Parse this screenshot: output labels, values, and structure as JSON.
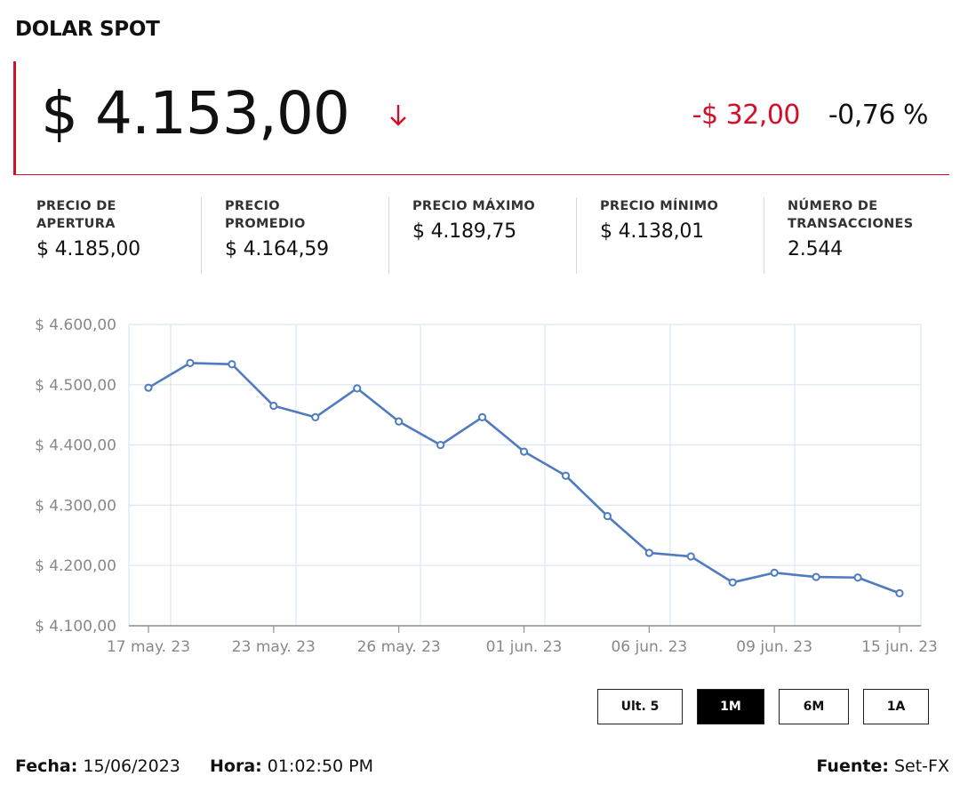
{
  "header": {
    "title": "DOLAR SPOT",
    "price": "$ 4.153,00",
    "change": "-$ 32,00",
    "change_pct": "-0,76 %",
    "trend": "down",
    "colors": {
      "down": "#d3102a",
      "line": "#4f7bbf",
      "grid": "#dde6f2"
    }
  },
  "stats": [
    {
      "label": "PRECIO DE APERTURA",
      "value": "$ 4.185,00"
    },
    {
      "label": "PRECIO PROMEDIO",
      "value": "$ 4.164,59"
    },
    {
      "label": "PRECIO MÁXIMO",
      "value": "$ 4.189,75"
    },
    {
      "label": "PRECIO MÍNIMO",
      "value": "$ 4.138,01"
    },
    {
      "label": "NÚMERO DE TRANSACCIONES",
      "value": "2.544"
    }
  ],
  "chart_data": {
    "type": "line",
    "title": "",
    "xlabel": "",
    "ylabel": "",
    "ylim": [
      4100,
      4600
    ],
    "grid": true,
    "yticks": [
      4100,
      4200,
      4300,
      4400,
      4500,
      4600
    ],
    "ytick_labels": [
      "$ 4.100,00",
      "$ 4.200,00",
      "$ 4.300,00",
      "$ 4.400,00",
      "$ 4.500,00",
      "$ 4.600,00"
    ],
    "xtick_labels": [
      "17 may. 23",
      "23 may. 23",
      "26 may. 23",
      "01 jun. 23",
      "06 jun. 23",
      "09 jun. 23",
      "15 jun. 23"
    ],
    "xtick_index": [
      0,
      3,
      6,
      9,
      12,
      15,
      18
    ],
    "series": [
      {
        "values": [
          4495,
          4536,
          4534,
          4465,
          4446,
          4494,
          4439,
          4400,
          4446,
          4389,
          4349,
          4282,
          4221,
          4215,
          4172,
          4188,
          4181,
          4180,
          4154
        ]
      }
    ]
  },
  "ranges": {
    "buttons": [
      "Ult. 5",
      "1M",
      "6M",
      "1A"
    ],
    "active": "1M"
  },
  "footer": {
    "fecha_label": "Fecha:",
    "fecha": "15/06/2023",
    "hora_label": "Hora:",
    "hora": "01:02:50 PM",
    "fuente_label": "Fuente:",
    "fuente": "Set-FX"
  }
}
